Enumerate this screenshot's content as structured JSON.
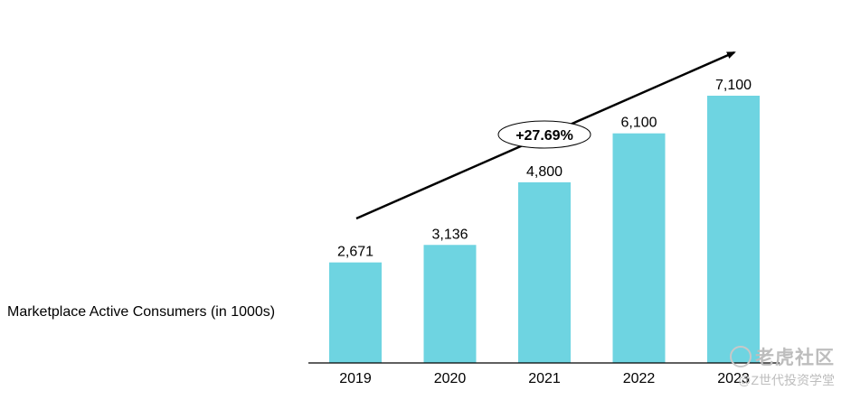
{
  "chart_data": {
    "type": "bar",
    "categories": [
      "2019",
      "2020",
      "2021",
      "2022",
      "2023"
    ],
    "values": [
      2671,
      3136,
      4800,
      6100,
      7100
    ],
    "value_labels": [
      "2,671",
      "3,136",
      "4,800",
      "6,100",
      "7,100"
    ],
    "ylabel": "Marketplace Active Consumers (in 1000s)",
    "ylim": [
      0,
      7100
    ],
    "grid": false,
    "bar_color": "#6ed4e1",
    "annotation": {
      "label": "+27.69%",
      "arrow": true
    }
  },
  "watermark": {
    "brand": "老虎社区",
    "subtitle": "@Z世代投资学堂"
  }
}
